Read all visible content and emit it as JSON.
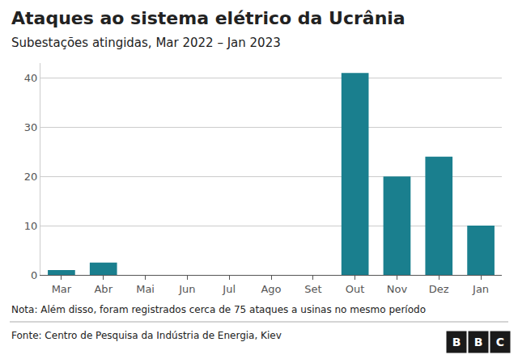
{
  "chart_data": {
    "type": "bar",
    "title": "Ataques ao sistema elétrico da Ucrânia",
    "subtitle": "Subestações atingidas, Mar 2022 – Jan 2023",
    "categories": [
      "Mar",
      "Abr",
      "Mai",
      "Jun",
      "Jul",
      "Ago",
      "Set",
      "Out",
      "Nov",
      "Dez",
      "Jan"
    ],
    "values": [
      1,
      2.5,
      0,
      0,
      0,
      0,
      0,
      41,
      20,
      24,
      10
    ],
    "color": "#1a7f8e",
    "ylim": [
      0,
      43
    ],
    "yticks": [
      0,
      10,
      20,
      30,
      40
    ],
    "grid": true,
    "annotations": [
      "Nota: Além disso, foram registrados cerca de 75 ataques a usinas no mesmo período",
      "Fonte: Centro de Pesquisa da Indústria de Energia, Kiev",
      "B",
      "B",
      "C"
    ]
  }
}
